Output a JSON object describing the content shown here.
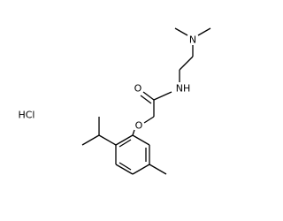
{
  "atoms": [
    {
      "label": "N"
    },
    {
      "label": "O"
    },
    {
      "label": "NH"
    },
    {
      "label": "O"
    }
  ],
  "salt": "HCl"
}
